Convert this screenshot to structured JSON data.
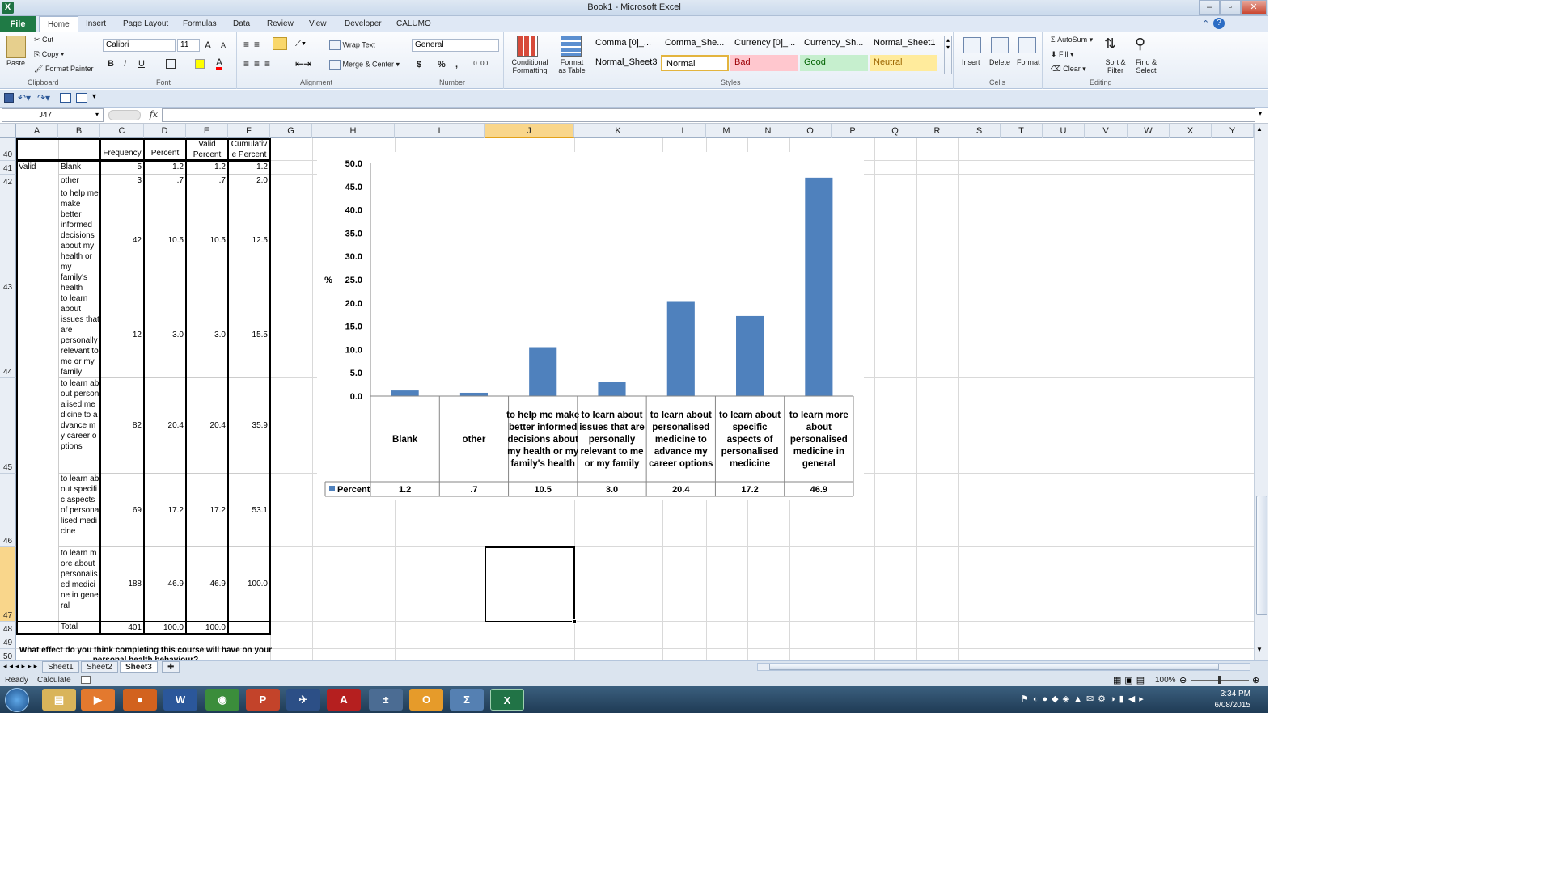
{
  "app": {
    "title": "Book1 - Microsoft Excel",
    "logo_letter": "X"
  },
  "window_controls": {
    "minimize": "–",
    "restore": "▫",
    "close": "✕"
  },
  "tabs": [
    "File",
    "Home",
    "Insert",
    "Page Layout",
    "Formulas",
    "Data",
    "Review",
    "View",
    "Developer",
    "CALUMO"
  ],
  "ribbon": {
    "clipboard": {
      "paste": "Paste",
      "cut": "Cut",
      "copy": "Copy",
      "format_painter": "Format Painter",
      "label": "Clipboard"
    },
    "font": {
      "name": "Calibri",
      "size": "11",
      "bold": "B",
      "italic": "I",
      "underline": "U",
      "grow": "A",
      "shrink": "A",
      "color_letter": "A",
      "label": "Font"
    },
    "alignment": {
      "wrap": "Wrap Text",
      "merge": "Merge & Center",
      "label": "Alignment"
    },
    "number": {
      "format": "General",
      "currency": "$",
      "percent": "%",
      "comma": ",",
      "inc": ".0 .00",
      "label": "Number"
    },
    "styles": {
      "conditional": "Conditional Formatting",
      "format_table": "Format as Table",
      "cells": [
        "Comma [0]_...",
        "Comma_She...",
        "Currency [0]_...",
        "Currency_Sh...",
        "Normal_Sheet1",
        "Normal_Sheet3",
        "Normal",
        "Bad",
        "Good",
        "Neutral"
      ],
      "label": "Styles"
    },
    "cells": {
      "insert": "Insert",
      "delete": "Delete",
      "format": "Format",
      "label": "Cells"
    },
    "editing": {
      "autosum": "AutoSum",
      "fill": "Fill",
      "clear": "Clear",
      "sort": "Sort & Filter",
      "find": "Find & Select",
      "label": "Editing"
    }
  },
  "colors": {
    "excel_green": "#1f7a45",
    "bar_blue": "#4f81bd",
    "bad_bg": "#ffc7ce",
    "good_bg": "#c6efce",
    "neutral_bg": "#ffeb9c"
  },
  "formula_bar": {
    "name_box": "J47",
    "fx": "fx",
    "formula": ""
  },
  "columns": [
    "A",
    "B",
    "C",
    "D",
    "E",
    "F",
    "G",
    "H",
    "I",
    "J",
    "K",
    "L",
    "M",
    "N",
    "O",
    "P",
    "Q",
    "R",
    "S",
    "T",
    "U",
    "V",
    "W",
    "X",
    "Y"
  ],
  "rows": [
    "40",
    "41",
    "42",
    "43",
    "44",
    "45",
    "46",
    "47",
    "48",
    "49",
    "50"
  ],
  "table": {
    "headers": {
      "frequency": "Frequency",
      "percent": "Percent",
      "valid_percent": "Valid Percent",
      "cumulative": "Cumulative Percent"
    },
    "valid_label": "Valid",
    "rows": [
      {
        "label": "Blank",
        "freq": "5",
        "pct": "1.2",
        "vpct": "1.2",
        "cum": "1.2"
      },
      {
        "label": "other",
        "freq": "3",
        "pct": ".7",
        "vpct": ".7",
        "cum": "2.0"
      },
      {
        "label": "to help me make better informed decisions about my health or my family's health",
        "freq": "42",
        "pct": "10.5",
        "vpct": "10.5",
        "cum": "12.5"
      },
      {
        "label": "to learn about issues that are personally relevant to me or my family",
        "freq": "12",
        "pct": "3.0",
        "vpct": "3.0",
        "cum": "15.5"
      },
      {
        "label": "to learn about personalised medicine to advance my career options",
        "freq": "82",
        "pct": "20.4",
        "vpct": "20.4",
        "cum": "35.9"
      },
      {
        "label": "to learn about specific aspects of personalised medicine",
        "freq": "69",
        "pct": "17.2",
        "vpct": "17.2",
        "cum": "53.1"
      },
      {
        "label": "to learn more about personalised medicine in general",
        "freq": "188",
        "pct": "46.9",
        "vpct": "46.9",
        "cum": "100.0"
      }
    ],
    "total": {
      "label": "Total",
      "freq": "401",
      "pct": "100.0",
      "vpct": "100.0"
    }
  },
  "question_text": "What effect do you think completing this course will have on your personal health behaviour?",
  "chart_data": {
    "type": "bar",
    "categories": [
      "Blank",
      "other",
      "to help me make better informed decisions about my health or my family's health",
      "to learn about issues that are personally relevant to me or my family",
      "to learn about personalised medicine to advance my career options",
      "to learn about specific aspects of personalised medicine",
      "to learn more about personalised medicine in general"
    ],
    "series": [
      {
        "name": "Percent",
        "values": [
          1.2,
          0.7,
          10.5,
          3.0,
          20.4,
          17.2,
          46.9
        ]
      }
    ],
    "table_values": [
      "1.2",
      ".7",
      "10.5",
      "3.0",
      "20.4",
      "17.2",
      "46.9"
    ],
    "ylabel": "%",
    "ylim": [
      0,
      50
    ],
    "yticks": [
      "0.0",
      "5.0",
      "10.0",
      "15.0",
      "20.0",
      "25.0",
      "30.0",
      "35.0",
      "40.0",
      "45.0",
      "50.0"
    ],
    "data_table": true,
    "grid": false
  },
  "sheets": [
    "Sheet1",
    "Sheet2",
    "Sheet3"
  ],
  "active_sheet": "Sheet3",
  "status": {
    "ready": "Ready",
    "calculate": "Calculate",
    "zoom": "100%"
  },
  "taskbar": {
    "time": "3:34 PM",
    "date": "6/08/2015"
  }
}
